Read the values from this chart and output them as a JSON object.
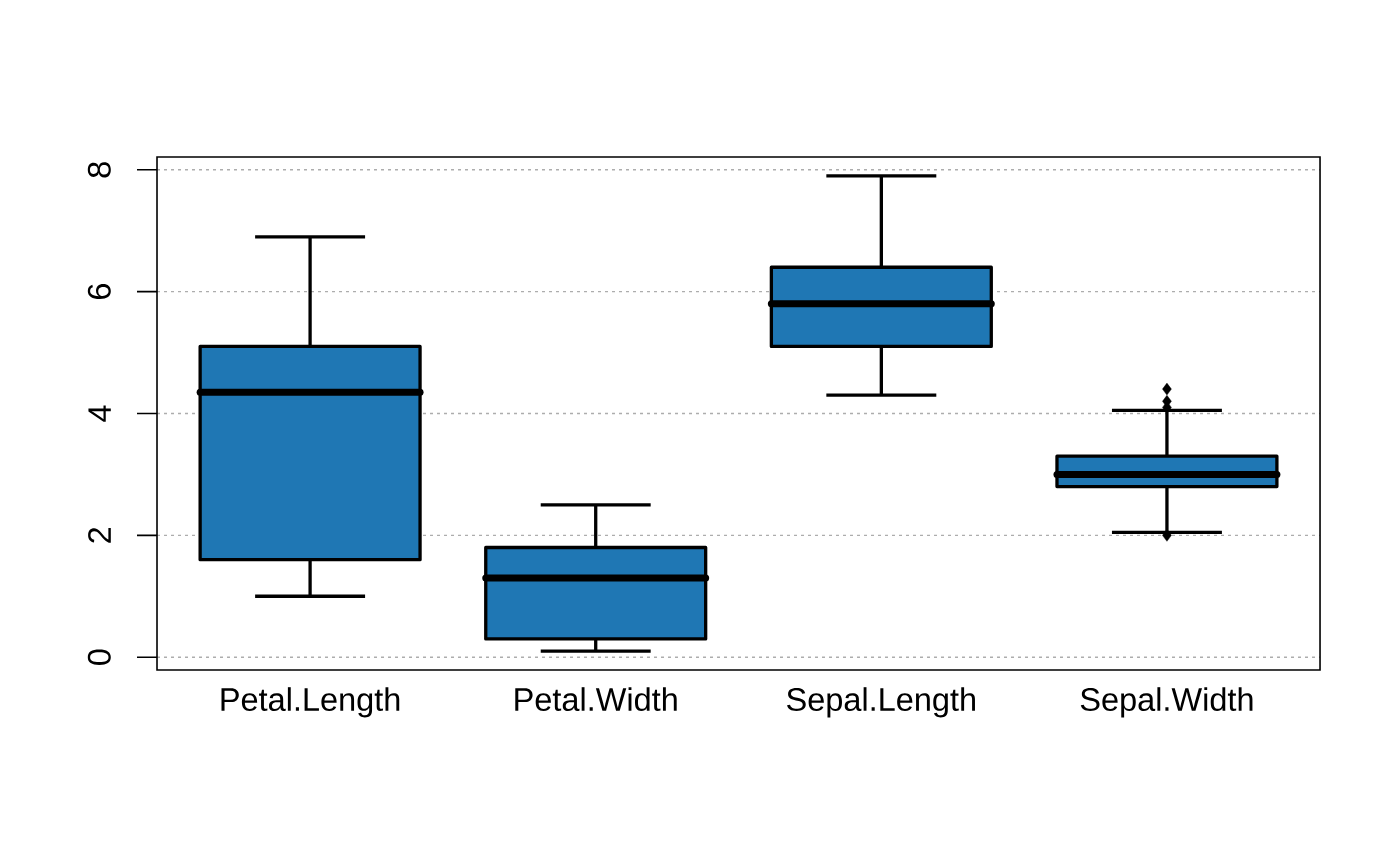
{
  "chart_data": {
    "type": "box",
    "categories": [
      "Petal.Length",
      "Petal.Width",
      "Sepal.Length",
      "Sepal.Width"
    ],
    "boxes": [
      {
        "low": 1.0,
        "q1": 1.6,
        "median": 4.35,
        "q3": 5.1,
        "high": 6.9
      },
      {
        "low": 0.1,
        "q1": 0.3,
        "median": 1.3,
        "q3": 1.8,
        "high": 2.5
      },
      {
        "low": 4.3,
        "q1": 5.1,
        "median": 5.8,
        "q3": 6.4,
        "high": 7.9
      },
      {
        "low": 2.05,
        "q1": 2.8,
        "median": 3.0,
        "q3": 3.3,
        "high": 4.05,
        "outliers": [
          4.4,
          4.2,
          4.1,
          2.0
        ]
      }
    ],
    "color": "#1f77b4",
    "ylim": [
      -0.21,
      8.21
    ],
    "yticks": [
      0,
      2,
      4,
      6,
      8
    ],
    "grid": "y",
    "marker": "diamond"
  }
}
